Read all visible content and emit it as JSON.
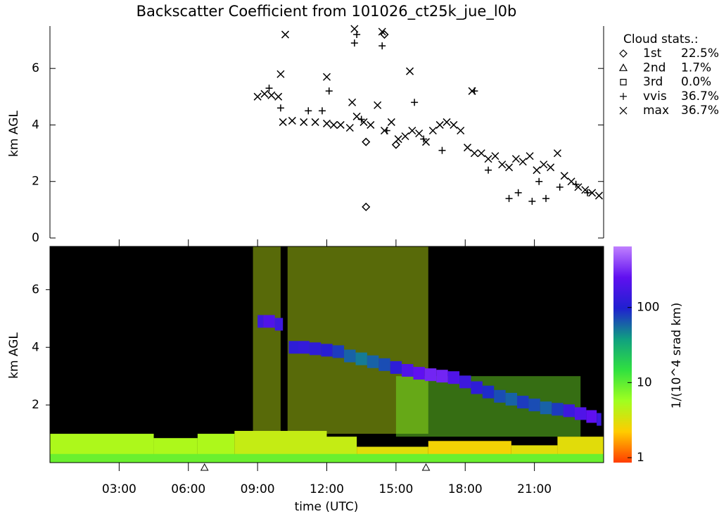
{
  "chart_data": [
    {
      "type": "scatter",
      "title": "Backscatter Coefficient from 101026_ct25k_jue_l0b",
      "ylabel": "km AGL",
      "xlim": [
        0,
        24
      ],
      "ylim": [
        0,
        7.5
      ],
      "yticks": [
        0,
        2,
        4,
        6
      ],
      "legend_title": "Cloud stats.:",
      "legend_position": "upper right outside",
      "series": [
        {
          "name": "1st",
          "marker": "diamond",
          "stat": {
            "value": 22.5,
            "label": "22.5%"
          },
          "x": [
            13.7,
            13.7,
            14.5,
            15.0
          ],
          "y": [
            1.1,
            3.4,
            7.2,
            3.3
          ]
        },
        {
          "name": "2nd",
          "marker": "triangle",
          "stat": {
            "value": 1.7,
            "label": "1.7%"
          },
          "x": [],
          "y": []
        },
        {
          "name": "3rd",
          "marker": "square",
          "stat": {
            "value": 0.0,
            "label": "0.0%"
          },
          "x": [],
          "y": []
        },
        {
          "name": "vvis",
          "marker": "plus",
          "stat": {
            "value": 36.7,
            "label": "36.7%"
          },
          "x": [
            9.5,
            10.0,
            11.2,
            11.8,
            12.1,
            13.2,
            13.3,
            13.5,
            14.4,
            14.6,
            15.8,
            16.2,
            17.0,
            18.4,
            19.0,
            19.9,
            20.3,
            20.9,
            21.2,
            21.5,
            22.1,
            22.8,
            23.3
          ],
          "y": [
            5.3,
            4.6,
            4.5,
            4.5,
            5.2,
            6.9,
            7.2,
            4.2,
            6.8,
            3.8,
            4.8,
            3.5,
            3.1,
            5.2,
            2.4,
            1.4,
            1.6,
            1.3,
            2.0,
            1.4,
            1.8,
            1.9,
            1.6
          ]
        },
        {
          "name": "max",
          "marker": "x",
          "stat": {
            "value": 36.7,
            "label": "36.7%"
          },
          "x": [
            9.0,
            9.3,
            9.6,
            9.9,
            10.1,
            10.5,
            11,
            11.5,
            12,
            12.3,
            12.6,
            13,
            13.3,
            13.6,
            13.9,
            14.2,
            14.5,
            14.8,
            15.1,
            15.4,
            15.7,
            16,
            16.3,
            16.6,
            16.9,
            17.2,
            17.5,
            17.8,
            18.1,
            18.4,
            18.7,
            19,
            19.3,
            19.6,
            19.9,
            20.2,
            20.5,
            20.8,
            21.1,
            21.4,
            21.7,
            22,
            22.3,
            22.6,
            22.9,
            23.2,
            23.5,
            23.8,
            10.2,
            12.0,
            13.2,
            14.4,
            15.6,
            18.3,
            13.1,
            10.0
          ],
          "y": [
            5.0,
            5.1,
            5.05,
            5.0,
            4.1,
            4.15,
            4.1,
            4.1,
            4.05,
            4.0,
            4.0,
            3.9,
            4.3,
            4.1,
            4.0,
            4.7,
            3.8,
            4.1,
            3.5,
            3.6,
            3.8,
            3.7,
            3.4,
            3.8,
            4.0,
            4.1,
            4.0,
            3.8,
            3.2,
            3.0,
            3.0,
            2.8,
            2.9,
            2.6,
            2.5,
            2.8,
            2.7,
            2.9,
            2.4,
            2.6,
            2.5,
            3.0,
            2.2,
            2.0,
            1.8,
            1.7,
            1.6,
            1.5,
            7.2,
            5.7,
            7.4,
            7.3,
            5.9,
            5.2,
            4.8,
            5.8
          ]
        }
      ]
    },
    {
      "type": "heatmap",
      "ylabel": "km AGL",
      "xlabel": "time (UTC)",
      "xlim": [
        0,
        24
      ],
      "xticks": [
        {
          "value": 3,
          "label": "03:00"
        },
        {
          "value": 6,
          "label": "06:00"
        },
        {
          "value": 9,
          "label": "09:00"
        },
        {
          "value": 12,
          "label": "12:00"
        },
        {
          "value": 15,
          "label": "15:00"
        },
        {
          "value": 18,
          "label": "18:00"
        },
        {
          "value": 21,
          "label": "21:00"
        }
      ],
      "ylim": [
        0,
        7.5
      ],
      "yticks": [
        2,
        4,
        6
      ],
      "colorbar_label": "1/(10^4 srad km)",
      "clim": [
        0.86,
        650
      ],
      "log_color": true,
      "cticks": [
        1,
        10,
        100
      ],
      "colormap": [
        "#ff3c00",
        "#ffcc00",
        "#a0ff20",
        "#30e040",
        "#10a080",
        "#2020d0",
        "#6010f0",
        "#c080ff"
      ],
      "background": "#000000",
      "cells": [
        {
          "x0": 8.8,
          "x1": 10.0,
          "y0": 1.0,
          "y1": 7.5,
          "value": 4,
          "speckle": true
        },
        {
          "x0": 10.3,
          "x1": 16.4,
          "y0": 1.0,
          "y1": 7.5,
          "value": 4,
          "speckle": true
        },
        {
          "x0": 15,
          "x1": 23,
          "y0": 0.9,
          "y1": 3.0,
          "value": 8,
          "speckle": true
        },
        {
          "x0": 0,
          "x1": 4.5,
          "y0": 0,
          "y1": 1.0,
          "value": 5
        },
        {
          "x0": 4.5,
          "x1": 6.4,
          "y0": 0,
          "y1": 0.85,
          "value": 5
        },
        {
          "x0": 6.4,
          "x1": 8,
          "y0": 0,
          "y1": 1.0,
          "value": 5
        },
        {
          "x0": 8,
          "x1": 12,
          "y0": 0,
          "y1": 1.1,
          "value": 4
        },
        {
          "x0": 12,
          "x1": 13.3,
          "y0": 0,
          "y1": 0.9,
          "value": 4
        },
        {
          "x0": 13.3,
          "x1": 16.4,
          "y0": 0,
          "y1": 0.55,
          "value": 3
        },
        {
          "x0": 16.4,
          "x1": 20,
          "y0": 0,
          "y1": 0.75,
          "value": 2.5
        },
        {
          "x0": 20,
          "x1": 22,
          "y0": 0,
          "y1": 0.6,
          "value": 3
        },
        {
          "x0": 22,
          "x1": 24,
          "y0": 0,
          "y1": 0.9,
          "value": 3
        },
        {
          "x0": 0,
          "x1": 24,
          "y0": 0,
          "y1": 0.3,
          "value": 9
        }
      ],
      "cloud": {
        "x": [
          9.0,
          9.5,
          10.0,
          10.2,
          10.5,
          11,
          11.5,
          12,
          12.5,
          13,
          13.5,
          14,
          14.5,
          15,
          15.5,
          16,
          16.5,
          17,
          17.5,
          18,
          18.5,
          19,
          19.5,
          20,
          20.5,
          21,
          21.5,
          22,
          22.5,
          23,
          23.5,
          23.9
        ],
        "y": [
          4.9,
          4.9,
          4.8,
          null,
          4.0,
          4.0,
          3.95,
          3.9,
          3.85,
          3.7,
          3.6,
          3.5,
          3.4,
          3.3,
          3.2,
          3.1,
          3.05,
          3.0,
          2.95,
          2.8,
          2.6,
          2.45,
          2.3,
          2.2,
          2.1,
          2.0,
          1.9,
          1.85,
          1.8,
          1.7,
          1.6,
          1.5
        ],
        "values": [
          150,
          200,
          150,
          null,
          120,
          130,
          120,
          110,
          80,
          60,
          50,
          60,
          70,
          120,
          200,
          250,
          300,
          300,
          200,
          150,
          120,
          90,
          70,
          60,
          80,
          70,
          60,
          80,
          150,
          200,
          250,
          150
        ]
      },
      "markers_x": [
        6.7,
        16.3
      ]
    }
  ]
}
